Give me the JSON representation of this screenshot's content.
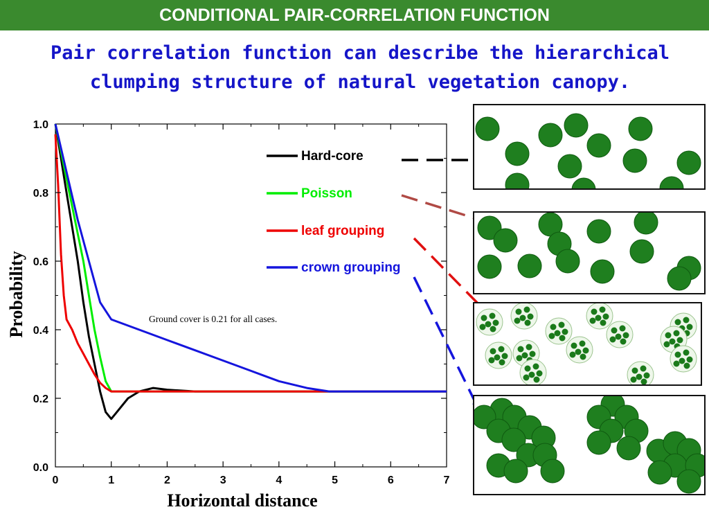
{
  "banner": {
    "title": "CONDITIONAL PAIR-CORRELATION FUNCTION"
  },
  "subtitle": {
    "line1": "Pair correlation function can describe the hierarchical",
    "line2": "clumping structure of natural vegetation canopy."
  },
  "chart_data": {
    "type": "line",
    "xlabel": "Horizontal distance",
    "ylabel": "Probability",
    "xlim": [
      0,
      7
    ],
    "ylim": [
      0,
      1
    ],
    "x_ticks": [
      "0",
      "1",
      "2",
      "3",
      "4",
      "5",
      "6",
      "7"
    ],
    "y_ticks": [
      "0.0",
      "0.2",
      "0.4",
      "0.6",
      "0.8",
      "1.0"
    ],
    "grid": false,
    "legend_position": "top-right",
    "annotation": "Ground cover is 0.21 for all cases.",
    "series": [
      {
        "name": "Hard-core",
        "color": "#000000",
        "points": [
          [
            0,
            1.0
          ],
          [
            0.1,
            0.9
          ],
          [
            0.2,
            0.8
          ],
          [
            0.3,
            0.7
          ],
          [
            0.4,
            0.6
          ],
          [
            0.5,
            0.48
          ],
          [
            0.6,
            0.38
          ],
          [
            0.7,
            0.3
          ],
          [
            0.8,
            0.22
          ],
          [
            0.9,
            0.16
          ],
          [
            1.0,
            0.14
          ],
          [
            1.1,
            0.16
          ],
          [
            1.3,
            0.2
          ],
          [
            1.5,
            0.22
          ],
          [
            1.75,
            0.23
          ],
          [
            2.0,
            0.225
          ],
          [
            2.5,
            0.22
          ],
          [
            3,
            0.22
          ],
          [
            4,
            0.22
          ],
          [
            5,
            0.22
          ],
          [
            6,
            0.22
          ],
          [
            7,
            0.22
          ]
        ]
      },
      {
        "name": "Poisson",
        "color": "#00ee00",
        "points": [
          [
            0,
            1.0
          ],
          [
            0.1,
            0.92
          ],
          [
            0.2,
            0.84
          ],
          [
            0.3,
            0.76
          ],
          [
            0.4,
            0.68
          ],
          [
            0.5,
            0.6
          ],
          [
            0.6,
            0.5
          ],
          [
            0.7,
            0.4
          ],
          [
            0.8,
            0.32
          ],
          [
            0.9,
            0.25
          ],
          [
            1.0,
            0.22
          ],
          [
            1.5,
            0.22
          ],
          [
            2,
            0.22
          ],
          [
            3,
            0.22
          ],
          [
            4,
            0.22
          ],
          [
            5,
            0.22
          ],
          [
            6,
            0.22
          ],
          [
            7,
            0.22
          ]
        ]
      },
      {
        "name": "leaf grouping",
        "color": "#ee0000",
        "points": [
          [
            0,
            0.97
          ],
          [
            0.05,
            0.82
          ],
          [
            0.1,
            0.62
          ],
          [
            0.15,
            0.5
          ],
          [
            0.2,
            0.43
          ],
          [
            0.3,
            0.4
          ],
          [
            0.4,
            0.36
          ],
          [
            0.5,
            0.33
          ],
          [
            0.6,
            0.3
          ],
          [
            0.7,
            0.27
          ],
          [
            0.8,
            0.245
          ],
          [
            0.9,
            0.23
          ],
          [
            1.0,
            0.22
          ],
          [
            1.5,
            0.22
          ],
          [
            2,
            0.22
          ],
          [
            3,
            0.22
          ],
          [
            4,
            0.22
          ],
          [
            5,
            0.22
          ],
          [
            6,
            0.22
          ],
          [
            7,
            0.22
          ]
        ]
      },
      {
        "name": "crown grouping",
        "color": "#1515dd",
        "points": [
          [
            0,
            1.0
          ],
          [
            0.2,
            0.86
          ],
          [
            0.4,
            0.72
          ],
          [
            0.6,
            0.6
          ],
          [
            0.8,
            0.48
          ],
          [
            1.0,
            0.43
          ],
          [
            1.5,
            0.4
          ],
          [
            2,
            0.37
          ],
          [
            2.5,
            0.34
          ],
          [
            3,
            0.31
          ],
          [
            3.5,
            0.28
          ],
          [
            4,
            0.25
          ],
          [
            4.5,
            0.23
          ],
          [
            4.9,
            0.22
          ],
          [
            5.5,
            0.22
          ],
          [
            6,
            0.22
          ],
          [
            7,
            0.22
          ]
        ]
      }
    ]
  },
  "panels": [
    {
      "kind": "solid",
      "leaves": 0,
      "circles": [
        [
          19,
          34
        ],
        [
          62,
          70
        ],
        [
          110,
          43
        ],
        [
          147,
          29
        ],
        [
          180,
          58
        ],
        [
          240,
          34
        ],
        [
          310,
          83
        ],
        [
          138,
          88
        ],
        [
          62,
          115
        ],
        [
          232,
          80
        ],
        [
          158,
          122
        ],
        [
          285,
          120
        ]
      ]
    },
    {
      "kind": "solid",
      "leaves": 0,
      "circles": [
        [
          22,
          22
        ],
        [
          45,
          40
        ],
        [
          110,
          17
        ],
        [
          123,
          45
        ],
        [
          135,
          70
        ],
        [
          180,
          27
        ],
        [
          248,
          14
        ],
        [
          242,
          56
        ],
        [
          22,
          78
        ],
        [
          80,
          77
        ],
        [
          185,
          85
        ],
        [
          310,
          80
        ],
        [
          296,
          95
        ]
      ]
    },
    {
      "kind": "leaf",
      "leaves": 6,
      "circles": [
        [
          22,
          27
        ],
        [
          72,
          18
        ],
        [
          122,
          40
        ],
        [
          152,
          67
        ],
        [
          181,
          18
        ],
        [
          210,
          45
        ],
        [
          240,
          103
        ],
        [
          302,
          33
        ],
        [
          288,
          52
        ],
        [
          302,
          80
        ],
        [
          35,
          75
        ],
        [
          75,
          72
        ],
        [
          85,
          100
        ]
      ]
    },
    {
      "kind": "solid",
      "leaves": 0,
      "circles": [
        [
          40,
          20
        ],
        [
          14,
          30
        ],
        [
          58,
          30
        ],
        [
          35,
          50
        ],
        [
          80,
          45
        ],
        [
          57,
          63
        ],
        [
          100,
          60
        ],
        [
          78,
          85
        ],
        [
          35,
          100
        ],
        [
          102,
          85
        ],
        [
          60,
          108
        ],
        [
          113,
          108
        ],
        [
          200,
          12
        ],
        [
          180,
          30
        ],
        [
          220,
          30
        ],
        [
          198,
          50
        ],
        [
          234,
          50
        ],
        [
          180,
          67
        ],
        [
          223,
          75
        ],
        [
          266,
          79
        ],
        [
          290,
          68
        ],
        [
          310,
          78
        ],
        [
          290,
          100
        ],
        [
          322,
          100
        ],
        [
          268,
          110
        ],
        [
          310,
          123
        ]
      ]
    }
  ]
}
